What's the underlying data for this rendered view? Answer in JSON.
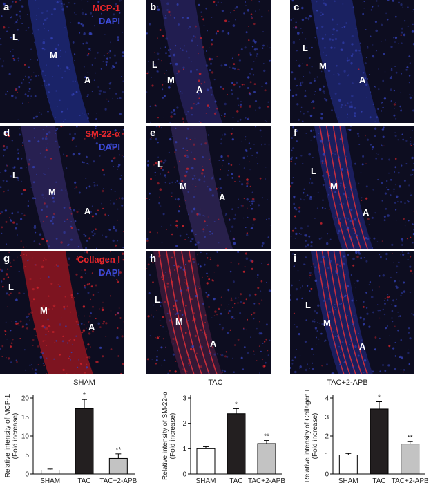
{
  "column_titles": [
    "SHAM",
    "TAC",
    "TAC+2-APB"
  ],
  "panels": [
    {
      "letter": "a",
      "marker": "MCP-1",
      "dapi": "DAPI",
      "regions": [
        "L",
        "M",
        "A"
      ]
    },
    {
      "letter": "b",
      "marker": "",
      "dapi": "",
      "regions": [
        "L",
        "M",
        "A"
      ]
    },
    {
      "letter": "c",
      "marker": "",
      "dapi": "",
      "regions": [
        "L",
        "M",
        "A"
      ]
    },
    {
      "letter": "d",
      "marker": "SM-22-α",
      "dapi": "DAPI",
      "regions": [
        "L",
        "M",
        "A"
      ]
    },
    {
      "letter": "e",
      "marker": "",
      "dapi": "",
      "regions": [
        "L",
        "M",
        "A"
      ]
    },
    {
      "letter": "f",
      "marker": "",
      "dapi": "",
      "regions": [
        "L",
        "M",
        "A"
      ]
    },
    {
      "letter": "g",
      "marker": "Collagen I",
      "dapi": "DAPI",
      "regions": [
        "L",
        "M",
        "A"
      ]
    },
    {
      "letter": "h",
      "marker": "",
      "dapi": "",
      "regions": [
        "L",
        "M",
        "A"
      ]
    },
    {
      "letter": "i",
      "marker": "",
      "dapi": "",
      "regions": [
        "L",
        "M",
        "A"
      ]
    }
  ],
  "colors": {
    "marker_red": "#e8262a",
    "dapi_blue": "#3d4bd8",
    "sham_bar": "#ffffff",
    "tac_bar": "#231f20",
    "apb_bar": "#c3c3c3"
  },
  "chart_data": [
    {
      "type": "bar",
      "categories": [
        "SHAM",
        "TAC",
        "TAC+2-APB"
      ],
      "values": [
        1.0,
        17.2,
        4.1
      ],
      "errors": [
        0.3,
        2.4,
        1.2
      ],
      "significance": [
        "",
        "*",
        "**"
      ],
      "ylabel": "Relative intensity of MCP-1",
      "ylabel2": "(Fold increase)",
      "ylim": [
        0,
        20
      ],
      "yticks": [
        "0",
        "5",
        "10",
        "15",
        "20"
      ],
      "ytick_values": [
        0,
        5,
        10,
        15,
        20
      ]
    },
    {
      "type": "bar",
      "categories": [
        "SHAM",
        "TAC",
        "TAC+2-APB"
      ],
      "values": [
        1.0,
        2.38,
        1.2
      ],
      "errors": [
        0.08,
        0.2,
        0.12
      ],
      "significance": [
        "",
        "*",
        "**"
      ],
      "ylabel": "Relative intensity of SM-22-α",
      "ylabel2": "(Fold increase)",
      "ylim": [
        0,
        3
      ],
      "yticks": [
        "0",
        "1",
        "2",
        "3"
      ],
      "ytick_values": [
        0,
        1,
        2,
        3
      ]
    },
    {
      "type": "bar",
      "categories": [
        "SHAM",
        "TAC",
        "TAC+2-APB"
      ],
      "values": [
        1.0,
        3.42,
        1.58
      ],
      "errors": [
        0.08,
        0.38,
        0.12
      ],
      "significance": [
        "",
        "*",
        "**"
      ],
      "ylabel": "Relative intensity of Collagen I",
      "ylabel2": "(Fold increase)",
      "ylim": [
        0,
        4
      ],
      "yticks": [
        "0",
        "1",
        "2",
        "3",
        "4"
      ],
      "ytick_values": [
        0,
        1,
        2,
        3,
        4
      ]
    }
  ]
}
